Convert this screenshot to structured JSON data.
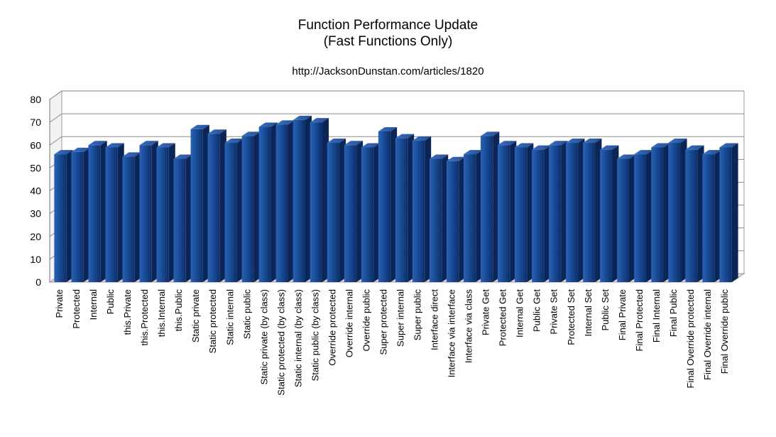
{
  "chart_data": {
    "type": "bar",
    "title": "Function Performance Update",
    "subtitle": "(Fast Functions Only)",
    "annotation": "http://JacksonDunstan.com/articles/1820",
    "xlabel": "",
    "ylabel": "",
    "ylim": [
      0,
      80
    ],
    "yticks": [
      0,
      10,
      20,
      30,
      40,
      50,
      60,
      70,
      80
    ],
    "grid": true,
    "legend": "none",
    "bar_color": "#1f4f9a",
    "categories": [
      "Private",
      "Protected",
      "Internal",
      "Public",
      "this.Private",
      "this.Protected",
      "this.Internal",
      "this.Public",
      "Static private",
      "Static protected",
      "Static internal",
      "Static public",
      "Static private (by class)",
      "Static protected (by class)",
      "Static internal (by class)",
      "Static public (by class)",
      "Override protected",
      "Override internal",
      "Override public",
      "Super protected",
      "Super internal",
      "Super public",
      "Interface direct",
      "Interface via interface",
      "Interface via class",
      "Private Get",
      "Protected Get",
      "Internal Get",
      "Public Get",
      "Private Set",
      "Protected Set",
      "Internal Set",
      "Public Set",
      "Final Private",
      "Final Protected",
      "Final Internal",
      "Final Public",
      "Final Override protected",
      "Final Override internal",
      "Final Override public"
    ],
    "values": [
      56,
      57,
      60,
      59,
      55,
      60,
      59,
      54,
      67,
      65,
      61,
      64,
      68,
      69,
      71,
      70,
      61,
      60,
      59,
      66,
      63,
      62,
      54,
      53,
      56,
      64,
      60,
      59,
      58,
      60,
      61,
      61,
      58,
      54,
      56,
      59,
      61,
      58,
      56,
      59
    ]
  }
}
